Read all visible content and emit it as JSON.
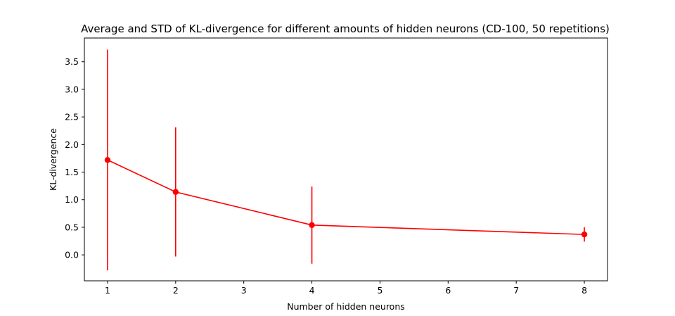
{
  "chart_data": {
    "type": "line",
    "title": "Average and STD of KL-divergence for different amounts of hidden neurons (CD-100, 50 repetitions)",
    "xlabel": "Number of hidden neurons",
    "ylabel": "KL-divergence",
    "xlim": [
      0.66,
      8.34
    ],
    "ylim": [
      -0.47,
      3.93
    ],
    "xticks": [
      1,
      2,
      3,
      4,
      5,
      6,
      7,
      8
    ],
    "yticks": [
      0.0,
      0.5,
      1.0,
      1.5,
      2.0,
      2.5,
      3.0,
      3.5
    ],
    "ytick_labels": [
      "0.0",
      "0.5",
      "1.0",
      "1.5",
      "2.0",
      "2.5",
      "3.0",
      "3.5"
    ],
    "grid": false,
    "series": [
      {
        "color": "#ff0000",
        "x": [
          1,
          2,
          4,
          8
        ],
        "y": [
          1.72,
          1.14,
          0.54,
          0.37
        ],
        "yerr": [
          2.0,
          1.17,
          0.7,
          0.13
        ]
      }
    ]
  }
}
